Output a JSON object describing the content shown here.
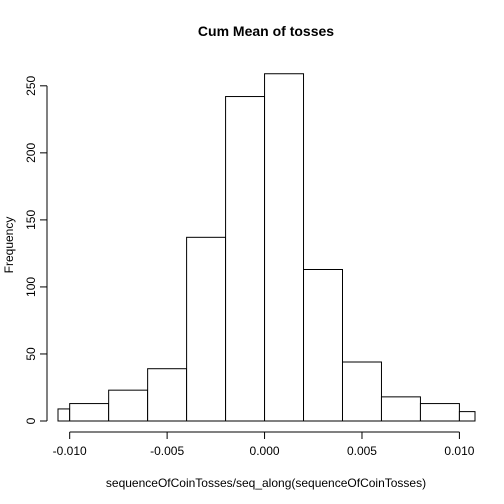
{
  "chart_data": {
    "type": "histogram",
    "title": "Cum Mean of tosses",
    "xlabel": "sequenceOfCoinTosses/seq_along(sequenceOfCoinTosses)",
    "ylabel": "Frequency",
    "bins": [
      {
        "x0": -0.012,
        "x1": -0.01,
        "count": 9
      },
      {
        "x0": -0.01,
        "x1": -0.008,
        "count": 13
      },
      {
        "x0": -0.008,
        "x1": -0.006,
        "count": 23
      },
      {
        "x0": -0.006,
        "x1": -0.004,
        "count": 39
      },
      {
        "x0": -0.004,
        "x1": -0.002,
        "count": 137
      },
      {
        "x0": -0.002,
        "x1": 0.0,
        "count": 242
      },
      {
        "x0": 0.0,
        "x1": 0.002,
        "count": 259
      },
      {
        "x0": 0.002,
        "x1": 0.004,
        "count": 113
      },
      {
        "x0": 0.004,
        "x1": 0.006,
        "count": 44
      },
      {
        "x0": 0.006,
        "x1": 0.008,
        "count": 18
      },
      {
        "x0": 0.008,
        "x1": 0.01,
        "count": 13
      },
      {
        "x0": 0.01,
        "x1": 0.012,
        "count": 7
      }
    ],
    "xlim": [
      -0.0106,
      0.0108
    ],
    "ylim": [
      0,
      270
    ],
    "xticks": [
      -0.01,
      -0.005,
      0.0,
      0.005,
      0.01
    ],
    "xtick_labels": [
      "-0.010",
      "-0.005",
      "0.000",
      "0.005",
      "0.010"
    ],
    "yticks": [
      0,
      50,
      100,
      150,
      200,
      250
    ],
    "ytick_labels": [
      "0",
      "50",
      "100",
      "150",
      "200",
      "250"
    ],
    "grid": false
  }
}
